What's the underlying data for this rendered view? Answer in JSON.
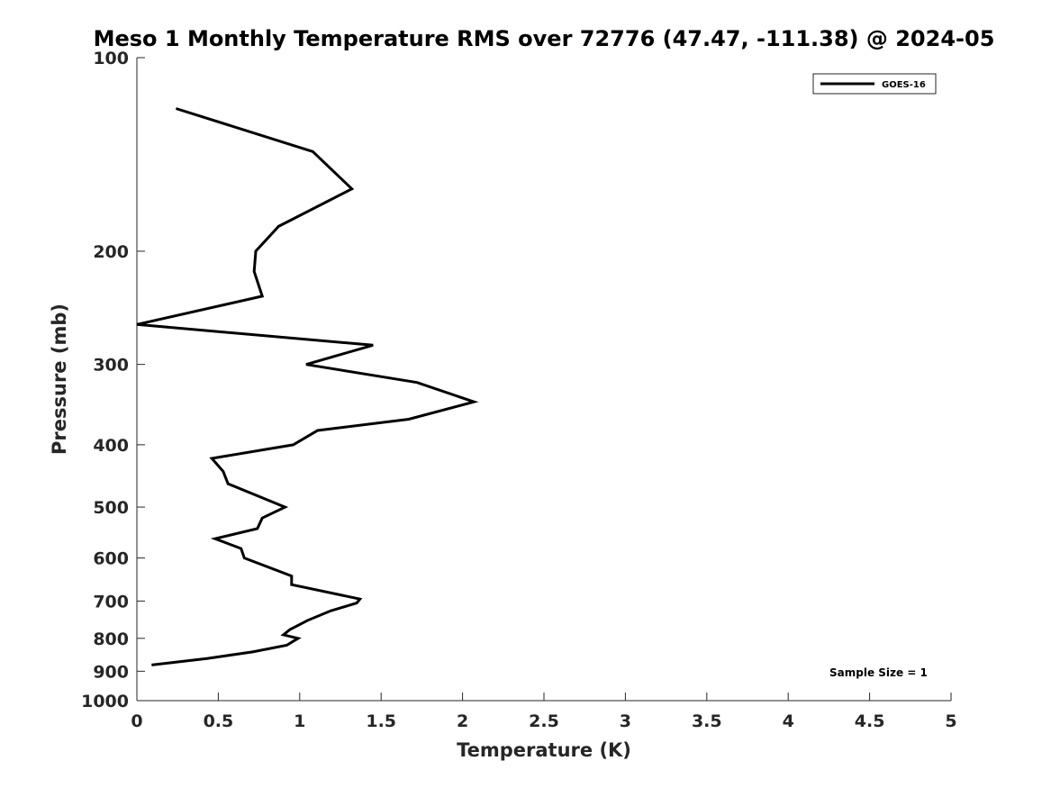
{
  "chart_data": {
    "type": "line",
    "title": "Meso 1 Monthly Temperature RMS over 72776 (47.47, -111.38) @ 2024-05",
    "xlabel": "Temperature (K)",
    "ylabel": "Pressure (mb)",
    "xlim": [
      0,
      5
    ],
    "ylim": [
      100,
      1000
    ],
    "y_scale": "log",
    "y_reversed": true,
    "grid": false,
    "legend_position": "top-right",
    "xticks": [
      "0",
      "0.5",
      "1",
      "1.5",
      "2",
      "2.5",
      "3",
      "3.5",
      "4",
      "4.5",
      "5"
    ],
    "yticks": [
      "100",
      "200",
      "300",
      "400",
      "500",
      "600",
      "700",
      "800",
      "900",
      "1000"
    ],
    "annotation": "Sample Size = 1",
    "color": "#000000",
    "series": [
      {
        "name": "GOES-16",
        "points": [
          {
            "x": 0.24,
            "y": 120
          },
          {
            "x": 1.08,
            "y": 140
          },
          {
            "x": 1.32,
            "y": 160
          },
          {
            "x": 0.87,
            "y": 183
          },
          {
            "x": 0.73,
            "y": 200
          },
          {
            "x": 0.72,
            "y": 215
          },
          {
            "x": 0.77,
            "y": 235
          },
          {
            "x": 0.0,
            "y": 260
          },
          {
            "x": 1.45,
            "y": 280
          },
          {
            "x": 1.04,
            "y": 300
          },
          {
            "x": 1.72,
            "y": 320
          },
          {
            "x": 2.07,
            "y": 343
          },
          {
            "x": 1.67,
            "y": 365
          },
          {
            "x": 1.11,
            "y": 380
          },
          {
            "x": 0.96,
            "y": 400
          },
          {
            "x": 0.46,
            "y": 420
          },
          {
            "x": 0.53,
            "y": 440
          },
          {
            "x": 0.56,
            "y": 460
          },
          {
            "x": 0.91,
            "y": 500
          },
          {
            "x": 0.77,
            "y": 520
          },
          {
            "x": 0.74,
            "y": 540
          },
          {
            "x": 0.48,
            "y": 560
          },
          {
            "x": 0.64,
            "y": 580
          },
          {
            "x": 0.66,
            "y": 600
          },
          {
            "x": 0.95,
            "y": 640
          },
          {
            "x": 0.95,
            "y": 660
          },
          {
            "x": 1.37,
            "y": 695
          },
          {
            "x": 1.35,
            "y": 705
          },
          {
            "x": 1.19,
            "y": 725
          },
          {
            "x": 1.05,
            "y": 750
          },
          {
            "x": 0.94,
            "y": 775
          },
          {
            "x": 0.9,
            "y": 790
          },
          {
            "x": 0.99,
            "y": 800
          },
          {
            "x": 0.92,
            "y": 820
          },
          {
            "x": 0.71,
            "y": 840
          },
          {
            "x": 0.43,
            "y": 860
          },
          {
            "x": 0.09,
            "y": 880
          }
        ]
      }
    ]
  }
}
